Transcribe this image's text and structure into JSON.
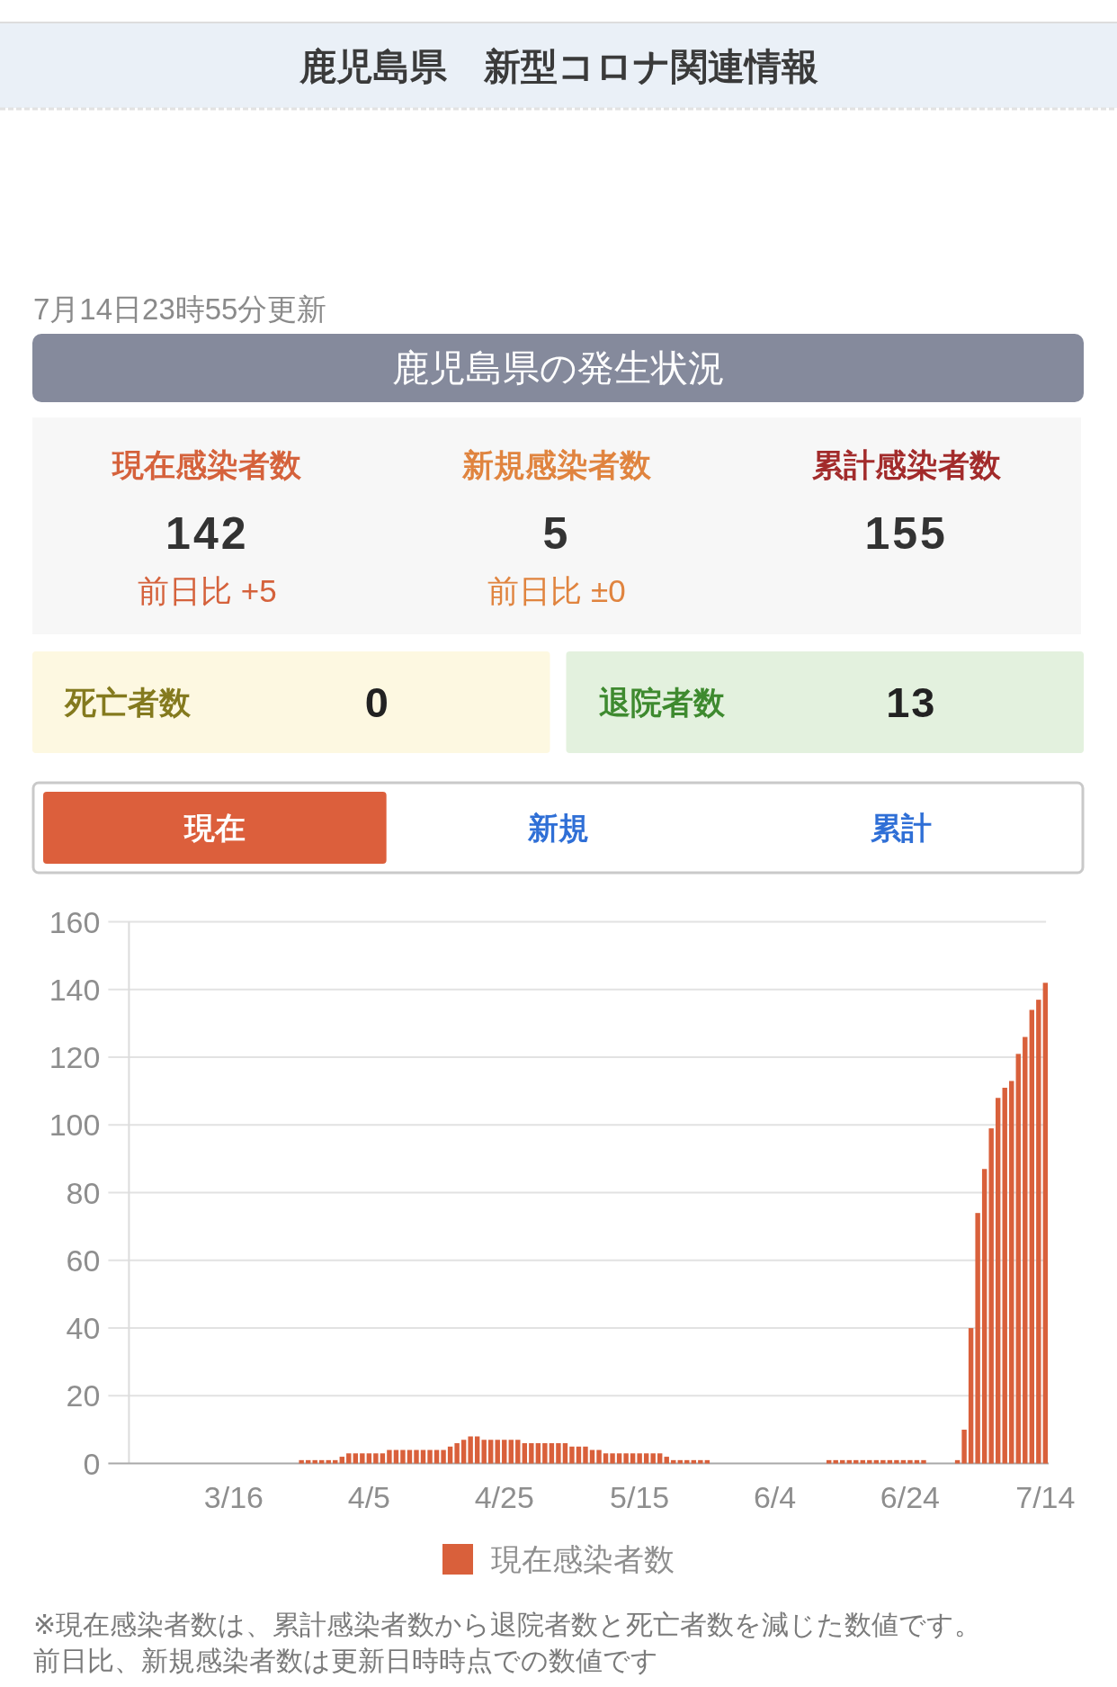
{
  "chart_data": [
    {
      "type": "other",
      "title": "鹿児島県　新型コロナ関連情報",
      "subtitle": "7月14日23時55分更新"
    },
    {
      "type": "other",
      "title": "鹿児島県の発生状況",
      "categories": [
        "現在感染者数",
        "新規感染者数",
        "累計感染者数",
        "死亡者数",
        "退院者数"
      ],
      "values": [
        142,
        5,
        155,
        0,
        13
      ],
      "data_labels": true,
      "annotations": [
        "前日比 +5",
        "前日比 ±0"
      ]
    },
    {
      "type": "other",
      "categories": [
        "現在",
        "新規",
        "累計"
      ],
      "colors": [
        "#dc5f3c",
        "#ffffff",
        "#ffffff"
      ]
    },
    {
      "type": "bar",
      "categories": [
        null,
        null,
        null,
        null,
        null,
        null,
        null,
        null,
        null,
        null,
        null,
        null,
        null,
        null,
        null,
        "3/16",
        null,
        null,
        null,
        null,
        null,
        null,
        null,
        null,
        null,
        null,
        null,
        null,
        null,
        null,
        null,
        null,
        null,
        null,
        null,
        "4/5",
        null,
        null,
        null,
        null,
        null,
        null,
        null,
        null,
        null,
        null,
        null,
        null,
        null,
        null,
        null,
        null,
        null,
        null,
        null,
        "4/25",
        null,
        null,
        null,
        null,
        null,
        null,
        null,
        null,
        null,
        null,
        null,
        null,
        null,
        null,
        null,
        null,
        null,
        null,
        null,
        "5/15",
        null,
        null,
        null,
        null,
        null,
        null,
        null,
        null,
        null,
        null,
        null,
        null,
        null,
        null,
        null,
        null,
        null,
        null,
        null,
        "6/4",
        null,
        null,
        null,
        null,
        null,
        null,
        null,
        null,
        null,
        null,
        null,
        null,
        null,
        null,
        null,
        null,
        null,
        null,
        null,
        "6/24",
        null,
        null,
        null,
        null,
        null,
        null,
        null,
        null,
        null,
        null,
        null,
        null,
        null,
        null,
        null,
        null,
        null,
        null,
        null,
        "7/14"
      ],
      "series": [
        {
          "name": "現在感染者数",
          "color": "#d9603b",
          "values": [
            0,
            0,
            0,
            0,
            0,
            0,
            0,
            0,
            0,
            0,
            0,
            0,
            0,
            0,
            0,
            0,
            0,
            0,
            0,
            0,
            0,
            0,
            0,
            0,
            0,
            1,
            1,
            1,
            1,
            1,
            1,
            2,
            3,
            3,
            3,
            3,
            3,
            3,
            4,
            4,
            4,
            4,
            4,
            4,
            4,
            4,
            4,
            5,
            6,
            7,
            8,
            8,
            7,
            7,
            7,
            7,
            7,
            7,
            6,
            6,
            6,
            6,
            6,
            6,
            6,
            5,
            5,
            5,
            4,
            4,
            3,
            3,
            3,
            3,
            3,
            3,
            3,
            3,
            3,
            2,
            1,
            1,
            1,
            1,
            1,
            1,
            0,
            0,
            0,
            0,
            0,
            0,
            0,
            0,
            0,
            0,
            0,
            0,
            0,
            0,
            0,
            0,
            0,
            1,
            1,
            1,
            1,
            1,
            1,
            1,
            1,
            1,
            1,
            1,
            1,
            1,
            1,
            1,
            0,
            0,
            0,
            0,
            1,
            10,
            40,
            74,
            87,
            99,
            108,
            111,
            113,
            121,
            126,
            134,
            137,
            142
          ]
        }
      ],
      "ylim": [
        0,
        160
      ],
      "yticks": [
        0,
        20,
        40,
        60,
        80,
        100,
        120,
        140,
        160
      ],
      "grid": "y",
      "legend": "bottom",
      "annotations": [
        "※現在感染者数は、累計感染者数から退院者数と死亡者数を減じた数値です。",
        "前日比、新規感染者数は更新日時時点での数値です"
      ]
    }
  ]
}
